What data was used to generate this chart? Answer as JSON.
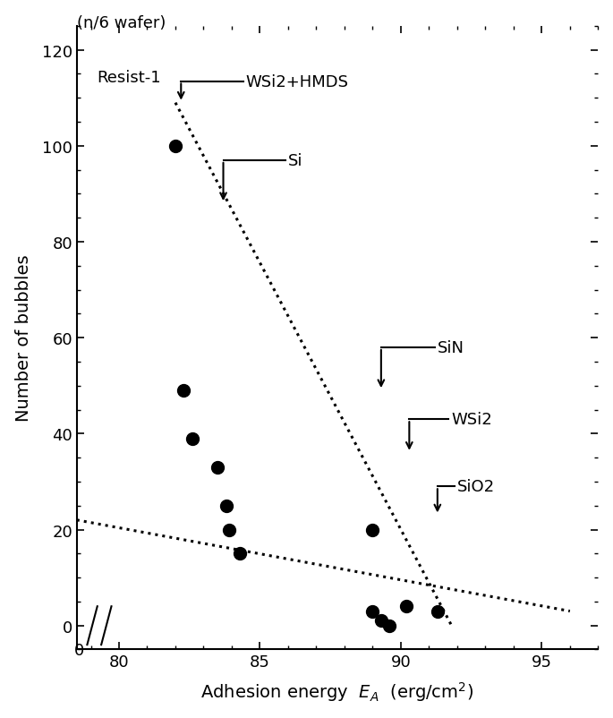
{
  "xlabel": "Adhesion energy  $E_A$  (erg/cm$^2$)",
  "ylabel": "Number of bubbles",
  "ylabel2": "(n/6 wafer)",
  "xlim": [
    78.5,
    97
  ],
  "ylim": [
    -5,
    125
  ],
  "xticks": [
    80,
    85,
    90,
    95
  ],
  "xticklabels": [
    "80",
    "85",
    "90",
    "95"
  ],
  "yticks": [
    0,
    20,
    40,
    60,
    80,
    100,
    120
  ],
  "data_points": [
    [
      82.0,
      100
    ],
    [
      82.3,
      49
    ],
    [
      82.6,
      39
    ],
    [
      83.5,
      33
    ],
    [
      83.8,
      25
    ],
    [
      83.9,
      20
    ],
    [
      84.3,
      15
    ],
    [
      89.0,
      20
    ],
    [
      89.0,
      3
    ],
    [
      89.3,
      1
    ],
    [
      89.6,
      0
    ],
    [
      90.2,
      4
    ],
    [
      91.3,
      3
    ]
  ],
  "dashed_line1_x": [
    82.0,
    91.8
  ],
  "dashed_line1_y": [
    109,
    0
  ],
  "dashed_line2_x": [
    78.5,
    96
  ],
  "dashed_line2_y": [
    22,
    3
  ],
  "background_color": "#ffffff",
  "dot_color": "#000000",
  "dot_size": 100,
  "legend_text": "Resist-1",
  "break_x": 79.5,
  "break_y": 0
}
